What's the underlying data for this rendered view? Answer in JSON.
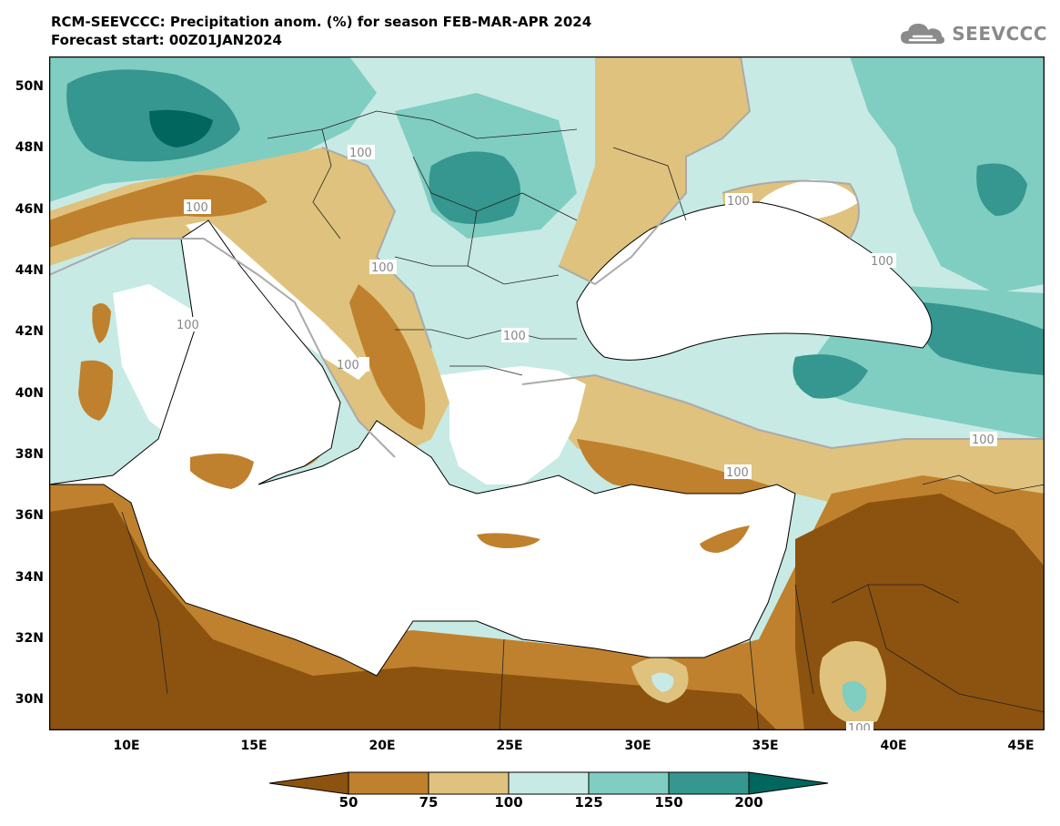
{
  "title": {
    "line1": "RCM-SEEVCCC: Precipitation anom. (%) for season FEB-MAR-APR 2024",
    "line2": "Forecast start: 00Z01JAN2024"
  },
  "logo": {
    "text": "SEEVCCC",
    "icon": "cloud-logo-icon"
  },
  "map": {
    "lon_range": [
      7,
      46
    ],
    "lat_range": [
      29,
      51
    ],
    "lat_ticks": [
      "50N",
      "48N",
      "46N",
      "44N",
      "42N",
      "40N",
      "38N",
      "36N",
      "34N",
      "32N",
      "30N"
    ],
    "lon_ticks": [
      "10E",
      "15E",
      "20E",
      "25E",
      "30E",
      "35E",
      "40E",
      "45E"
    ],
    "contour_labels": [
      "100",
      "100",
      "100",
      "100",
      "100",
      "100",
      "100",
      "100",
      "100",
      "100",
      "100"
    ]
  },
  "colorbar": {
    "labels": [
      "50",
      "75",
      "100",
      "125",
      "150",
      "200"
    ],
    "colors": [
      "#8c520f",
      "#bf812d",
      "#dfc27d",
      "#c7eae5",
      "#80cdc1",
      "#35978f",
      "#01665e"
    ]
  },
  "palette": {
    "dry_strong": "#8c520f",
    "dry": "#bf812d",
    "dry_light": "#dfc27d",
    "wet_light": "#c7eae5",
    "wet": "#80cdc1",
    "wet_more": "#35978f",
    "wet_strong": "#01665e",
    "sea": "#ffffff"
  }
}
